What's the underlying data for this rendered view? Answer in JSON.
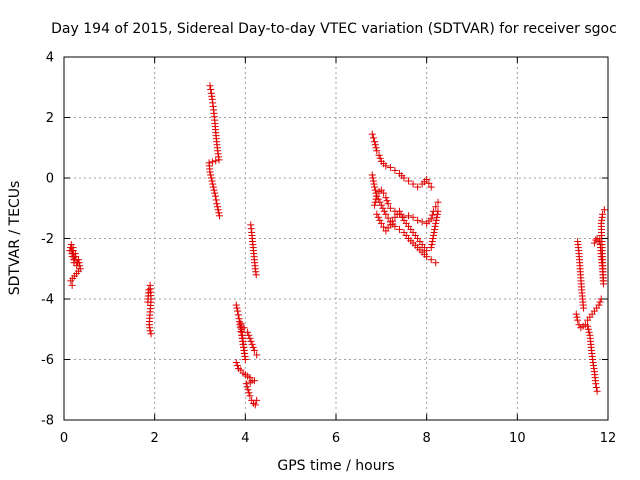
{
  "chart_data": {
    "type": "scatter",
    "title": "Day 194 of 2015, Sidereal Day-to-day VTEC variation (SDTVAR) for receiver sgoc",
    "xlabel": "GPS time / hours",
    "ylabel": "SDTVAR / TECUs",
    "xlim": [
      0,
      12
    ],
    "ylim": [
      -8,
      4
    ],
    "xticks": [
      0,
      2,
      4,
      6,
      8,
      10,
      12
    ],
    "yticks": [
      -8,
      -6,
      -4,
      -2,
      0,
      2,
      4
    ],
    "grid": true,
    "legend": "none",
    "marker": "plus",
    "color": "#e00000",
    "segments": [
      [
        [
          0.13,
          -2.4
        ],
        [
          0.16,
          -2.2
        ],
        [
          0.18,
          -2.6
        ],
        [
          0.2,
          -2.3
        ],
        [
          0.22,
          -2.8
        ],
        [
          0.25,
          -2.5
        ],
        [
          0.28,
          -2.9
        ],
        [
          0.32,
          -2.7
        ],
        [
          0.36,
          -3.0
        ],
        [
          0.15,
          -3.4
        ],
        [
          0.18,
          -3.55
        ]
      ],
      [
        [
          1.85,
          -4.1
        ],
        [
          1.87,
          -3.7
        ],
        [
          1.9,
          -3.55
        ],
        [
          1.92,
          -4.0
        ],
        [
          1.88,
          -4.85
        ],
        [
          1.9,
          -5.05
        ],
        [
          1.92,
          -5.15
        ]
      ],
      [
        [
          3.22,
          3.05
        ],
        [
          3.25,
          2.8
        ],
        [
          3.27,
          2.6
        ],
        [
          3.3,
          2.25
        ],
        [
          3.33,
          1.8
        ],
        [
          3.36,
          1.3
        ],
        [
          3.39,
          0.9
        ],
        [
          3.42,
          0.6
        ],
        [
          3.2,
          0.5
        ],
        [
          3.22,
          0.2
        ],
        [
          3.25,
          0.0
        ],
        [
          3.28,
          -0.2
        ],
        [
          3.31,
          -0.4
        ],
        [
          3.34,
          -0.6
        ],
        [
          3.37,
          -0.85
        ],
        [
          3.4,
          -1.05
        ],
        [
          3.43,
          -1.25
        ]
      ],
      [
        [
          3.8,
          -4.2
        ],
        [
          3.83,
          -4.4
        ],
        [
          3.86,
          -4.65
        ],
        [
          3.89,
          -4.95
        ],
        [
          3.92,
          -5.2
        ],
        [
          3.95,
          -5.5
        ],
        [
          3.98,
          -5.8
        ],
        [
          4.0,
          -6.0
        ],
        [
          3.9,
          -4.8
        ],
        [
          3.97,
          -4.95
        ],
        [
          4.05,
          -5.1
        ],
        [
          4.1,
          -5.3
        ],
        [
          4.15,
          -5.5
        ],
        [
          4.2,
          -5.7
        ],
        [
          4.25,
          -5.85
        ]
      ],
      [
        [
          3.8,
          -6.1
        ],
        [
          3.85,
          -6.3
        ],
        [
          3.9,
          -6.35
        ],
        [
          3.95,
          -6.45
        ],
        [
          4.0,
          -6.5
        ],
        [
          4.05,
          -6.55
        ],
        [
          4.1,
          -6.6
        ],
        [
          4.15,
          -6.7
        ],
        [
          4.2,
          -6.7
        ],
        [
          4.02,
          -6.8
        ],
        [
          4.06,
          -7.0
        ],
        [
          4.1,
          -7.2
        ],
        [
          4.14,
          -7.35
        ],
        [
          4.18,
          -7.45
        ],
        [
          4.22,
          -7.5
        ],
        [
          4.25,
          -7.35
        ]
      ],
      [
        [
          4.12,
          -1.55
        ],
        [
          4.14,
          -1.8
        ],
        [
          4.16,
          -2.1
        ],
        [
          4.18,
          -2.4
        ],
        [
          4.2,
          -2.7
        ],
        [
          4.22,
          -3.0
        ],
        [
          4.24,
          -3.2
        ]
      ],
      [
        [
          6.8,
          1.45
        ],
        [
          6.85,
          1.2
        ],
        [
          6.9,
          0.9
        ],
        [
          6.95,
          0.75
        ],
        [
          7.0,
          0.55
        ],
        [
          7.1,
          0.4
        ],
        [
          7.2,
          0.35
        ],
        [
          7.3,
          0.25
        ],
        [
          7.4,
          0.15
        ],
        [
          7.5,
          0.0
        ],
        [
          7.6,
          -0.1
        ],
        [
          7.7,
          -0.2
        ],
        [
          7.8,
          -0.3
        ],
        [
          7.9,
          -0.2
        ],
        [
          8.0,
          -0.05
        ],
        [
          8.1,
          -0.3
        ]
      ],
      [
        [
          6.8,
          0.1
        ],
        [
          6.85,
          -0.3
        ],
        [
          6.9,
          -0.6
        ],
        [
          7.0,
          -0.9
        ],
        [
          7.1,
          -1.2
        ],
        [
          7.2,
          -1.45
        ],
        [
          7.3,
          -1.6
        ],
        [
          7.4,
          -1.7
        ],
        [
          7.5,
          -1.8
        ],
        [
          7.6,
          -2.0
        ],
        [
          7.7,
          -2.15
        ],
        [
          7.8,
          -2.3
        ],
        [
          7.9,
          -2.45
        ],
        [
          8.0,
          -2.6
        ],
        [
          8.1,
          -2.7
        ],
        [
          8.2,
          -2.8
        ]
      ],
      [
        [
          6.85,
          -0.9
        ],
        [
          6.9,
          -0.6
        ],
        [
          6.95,
          -0.45
        ],
        [
          7.0,
          -0.4
        ],
        [
          7.05,
          -0.5
        ],
        [
          7.1,
          -0.65
        ],
        [
          7.15,
          -0.85
        ],
        [
          7.2,
          -1.0
        ],
        [
          7.3,
          -1.1
        ],
        [
          7.4,
          -1.2
        ],
        [
          7.5,
          -1.3
        ],
        [
          7.6,
          -1.25
        ],
        [
          7.7,
          -1.3
        ],
        [
          7.8,
          -1.4
        ],
        [
          7.9,
          -1.45
        ],
        [
          8.0,
          -1.5
        ],
        [
          8.1,
          -1.35
        ],
        [
          8.15,
          -1.1
        ],
        [
          8.2,
          -0.95
        ],
        [
          8.25,
          -0.8
        ]
      ],
      [
        [
          6.9,
          -1.2
        ],
        [
          7.0,
          -1.5
        ],
        [
          7.1,
          -1.75
        ],
        [
          7.2,
          -1.55
        ],
        [
          7.3,
          -1.3
        ],
        [
          7.4,
          -1.1
        ],
        [
          7.5,
          -1.4
        ],
        [
          7.6,
          -1.6
        ],
        [
          7.7,
          -1.8
        ],
        [
          7.8,
          -2.0
        ],
        [
          7.9,
          -2.2
        ],
        [
          8.0,
          -2.4
        ],
        [
          8.1,
          -2.3
        ],
        [
          8.15,
          -1.9
        ],
        [
          8.2,
          -1.5
        ],
        [
          8.25,
          -1.1
        ]
      ],
      [
        [
          11.3,
          -4.5
        ],
        [
          11.33,
          -4.7
        ],
        [
          11.36,
          -4.85
        ],
        [
          11.4,
          -4.95
        ],
        [
          11.45,
          -4.9
        ],
        [
          11.5,
          -4.85
        ],
        [
          11.55,
          -4.7
        ],
        [
          11.6,
          -4.6
        ],
        [
          11.65,
          -4.5
        ],
        [
          11.7,
          -4.4
        ],
        [
          11.75,
          -4.3
        ],
        [
          11.8,
          -4.2
        ],
        [
          11.85,
          -4.0
        ]
      ],
      [
        [
          11.33,
          -2.1
        ],
        [
          11.36,
          -2.5
        ],
        [
          11.38,
          -2.9
        ],
        [
          11.4,
          -3.3
        ],
        [
          11.42,
          -3.7
        ],
        [
          11.44,
          -4.0
        ],
        [
          11.46,
          -4.3
        ]
      ],
      [
        [
          11.55,
          -4.9
        ],
        [
          11.6,
          -5.2
        ],
        [
          11.63,
          -5.6
        ],
        [
          11.66,
          -6.0
        ],
        [
          11.7,
          -6.4
        ],
        [
          11.73,
          -6.8
        ],
        [
          11.76,
          -7.05
        ]
      ],
      [
        [
          11.7,
          -2.15
        ],
        [
          11.73,
          -2.05
        ],
        [
          11.76,
          -2.0
        ],
        [
          11.8,
          -2.1
        ],
        [
          11.82,
          -2.0
        ],
        [
          11.85,
          -2.6
        ],
        [
          11.88,
          -3.0
        ],
        [
          11.9,
          -3.5
        ],
        [
          11.85,
          -1.5
        ],
        [
          11.88,
          -1.2
        ],
        [
          11.92,
          -1.05
        ]
      ]
    ]
  }
}
